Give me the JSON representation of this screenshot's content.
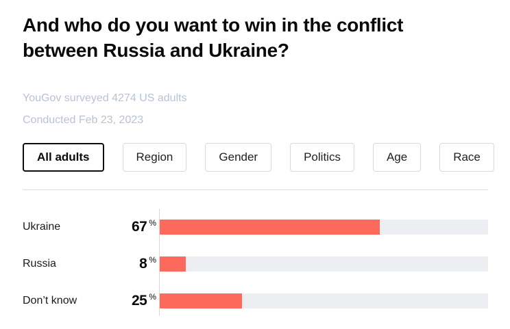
{
  "header": {
    "title_line1": "And who do you want to win in the conflict",
    "title_line2": "between Russia and Ukraine?",
    "source_line": "YouGov surveyed 4274 US adults",
    "date_line": "Conducted Feb 23, 2023"
  },
  "tabs": [
    {
      "label": "All adults",
      "selected": true
    },
    {
      "label": "Region",
      "selected": false
    },
    {
      "label": "Gender",
      "selected": false
    },
    {
      "label": "Politics",
      "selected": false
    },
    {
      "label": "Age",
      "selected": false
    },
    {
      "label": "Race",
      "selected": false
    }
  ],
  "chart_data": {
    "type": "bar",
    "orientation": "horizontal",
    "title": "And who do you want to win in the conflict between Russia and Ukraine?",
    "categories": [
      "Ukraine",
      "Russia",
      "Don’t know"
    ],
    "values": [
      67,
      8,
      25
    ],
    "unit": "%",
    "xlim": [
      0,
      100
    ],
    "grid": "off",
    "legend": "none",
    "bar_color": "#FB6A5B",
    "track_color": "#EDEEF2"
  },
  "colors": {
    "accent": "#FB6A5B",
    "track": "#EDEEF2",
    "muted_text": "#B8C2D6",
    "divider": "#DCDCDC",
    "title_text": "#0A0A0A"
  }
}
